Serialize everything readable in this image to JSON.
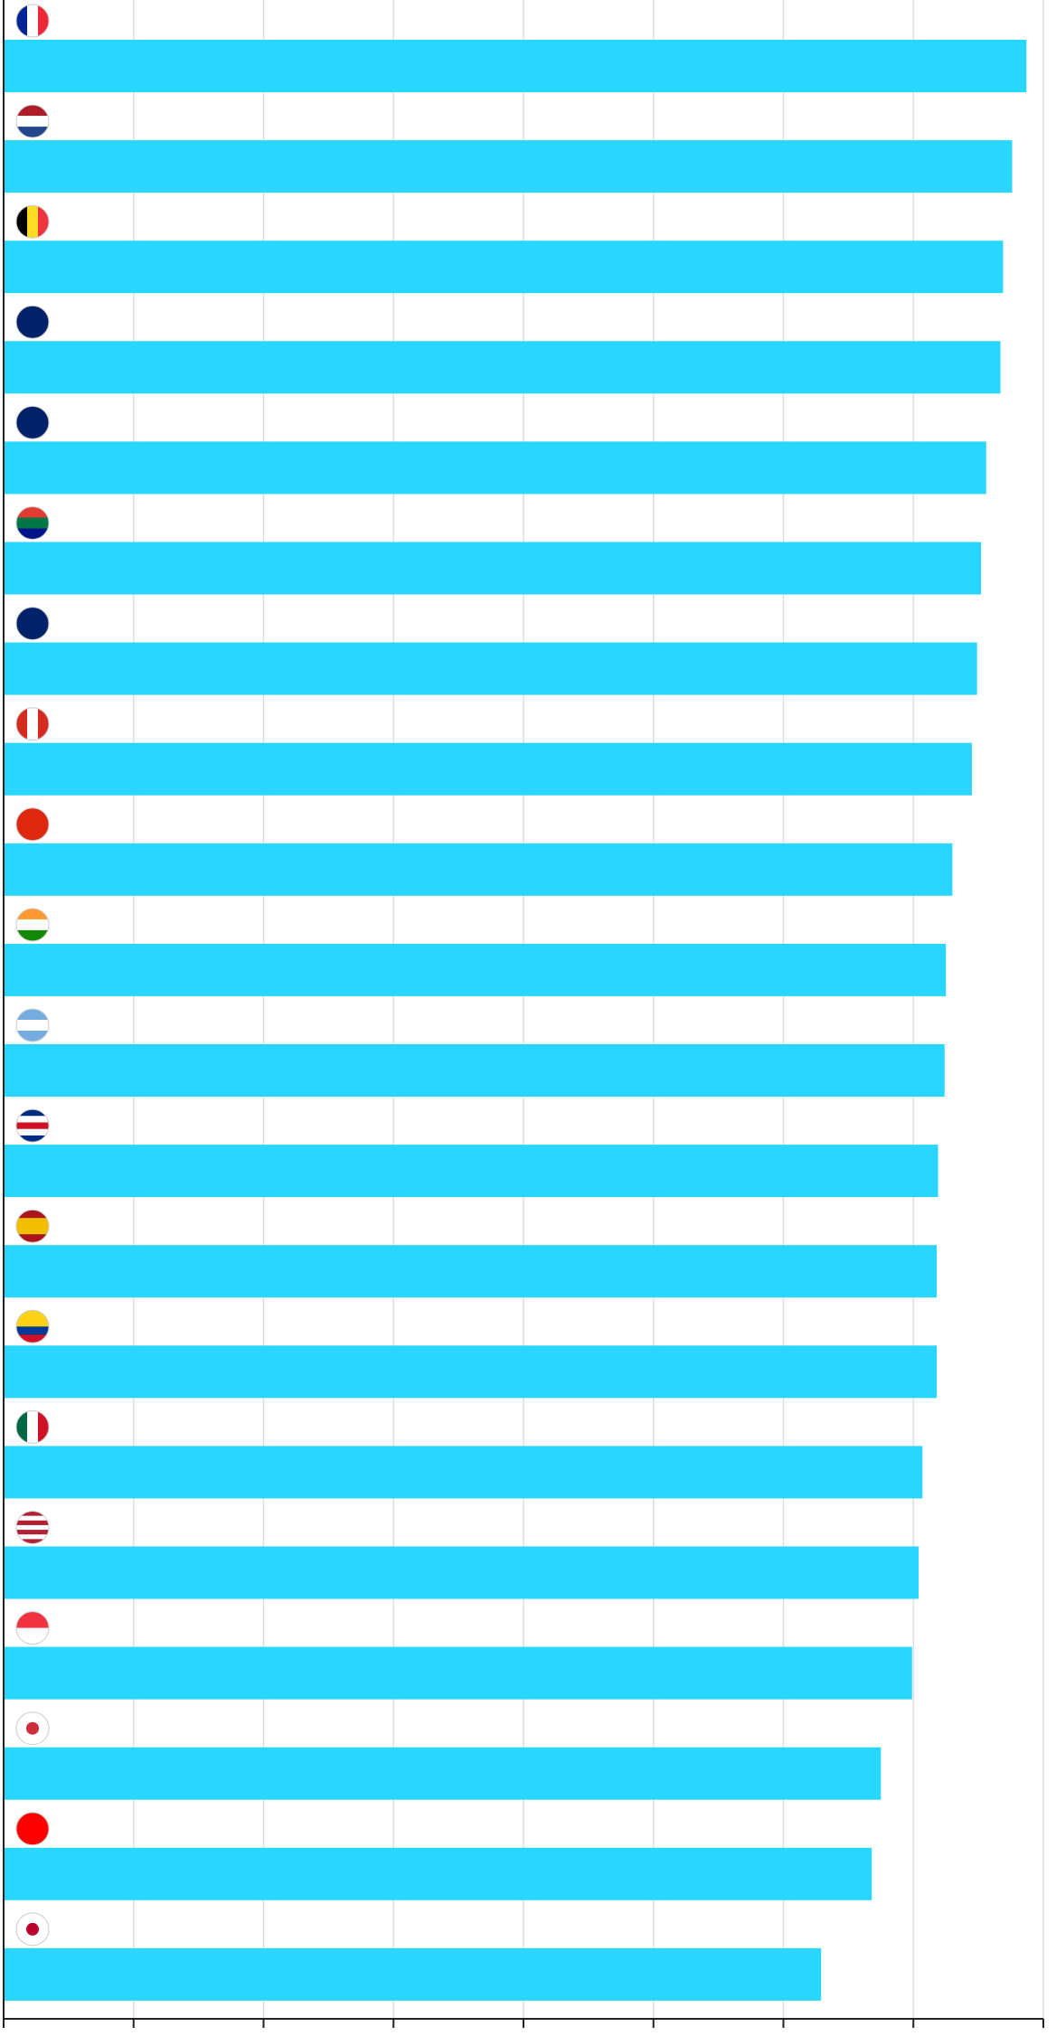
{
  "chart_data": {
    "type": "bar",
    "orientation": "horizontal",
    "color": "#29d6ff",
    "grid": true,
    "values": [
      7.87,
      7.76,
      7.69,
      7.67,
      7.56,
      7.52,
      7.49,
      7.45,
      7.3,
      7.25,
      7.24,
      7.19,
      7.18,
      7.18,
      7.07,
      7.04,
      6.99,
      6.75,
      6.68,
      6.29
    ],
    "xlim": [
      0,
      8
    ],
    "xticks": [
      0,
      1,
      2,
      3,
      4,
      5,
      6,
      7,
      8
    ]
  }
}
